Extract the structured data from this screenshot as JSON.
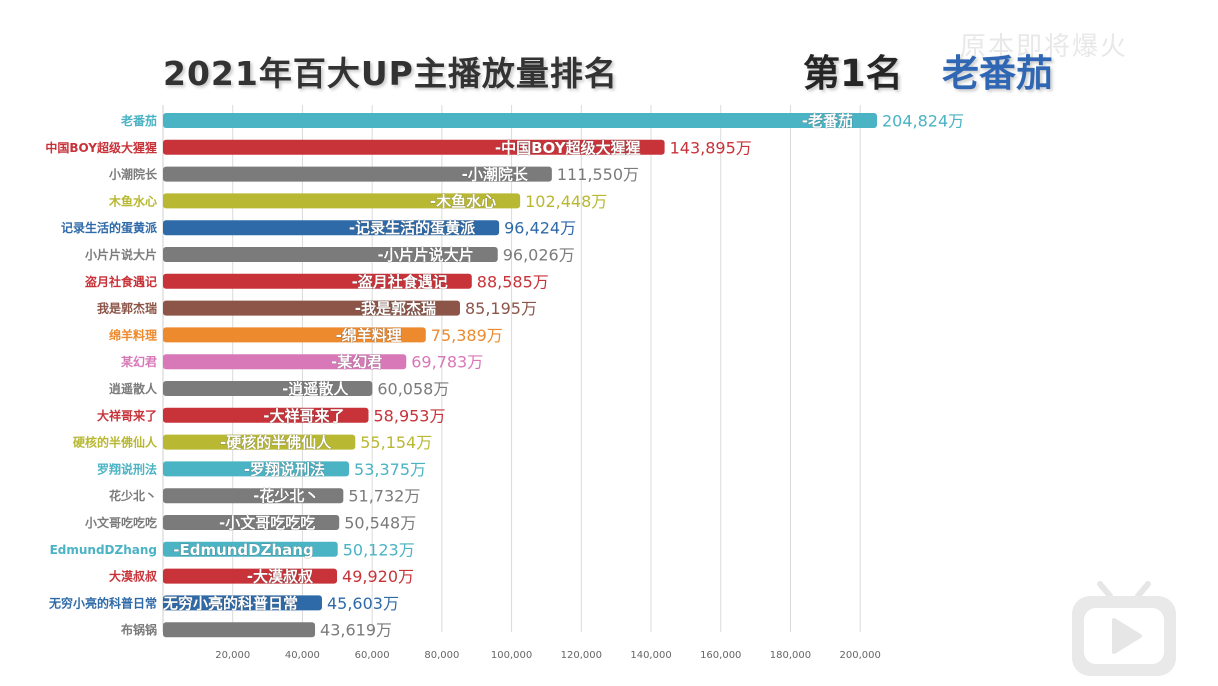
{
  "title": "2021年百大UP主播放量排名",
  "rank_label": "第1名",
  "leader": "老番茄",
  "watermark": "原本即将爆火",
  "chart_data": {
    "type": "bar",
    "orientation": "horizontal",
    "title": "2021年百大UP主播放量排名",
    "unit": "万",
    "xlim": [
      0,
      204824
    ],
    "xticks": [
      20000,
      40000,
      60000,
      80000,
      100000,
      120000,
      140000,
      160000,
      180000,
      200000
    ],
    "xtick_labels": [
      "20,000",
      "40,000",
      "60,000",
      "80,000",
      "100,000",
      "120,000",
      "140,000",
      "160,000",
      "180,000",
      "200,000"
    ],
    "grid": true,
    "categories": [
      "老番茄",
      "中国BOY超级大猩猩",
      "小潮院长",
      "木鱼水心",
      "记录生活的蛋黄派",
      "小片片说大片",
      "盗月社食遇记",
      "我是郭杰瑞",
      "绵羊料理",
      "某幻君",
      "逍遥散人",
      "大祥哥来了",
      "硬核的半佛仙人",
      "罗翔说刑法",
      "花少北丶",
      "小文哥吃吃吃",
      "EdmundDZhang",
      "大漠叔叔",
      "无穷小亮的科普日常",
      "布锅锅"
    ],
    "bar_labels": [
      "-老番茄",
      "-中国BOY超级大猩猩",
      "-小潮院长",
      "-木鱼水心",
      "-记录生活的蛋黄派",
      "-小片片说大片",
      "-盗月社食遇记",
      "-我是郭杰瑞",
      "-绵羊料理",
      "-某幻君",
      "-逍遥散人",
      "-大祥哥来了",
      "-硬核的半佛仙人",
      "-罗翔说刑法",
      "-花少北丶",
      "-小文哥吃吃吃",
      "-EdmundDZhang",
      "-大漠叔叔",
      "无穷小亮的科普日常",
      ""
    ],
    "values": [
      204824,
      143895,
      111550,
      102448,
      96424,
      96026,
      88585,
      85195,
      75389,
      69783,
      60058,
      58953,
      55154,
      53375,
      51732,
      50548,
      50123,
      49920,
      45603,
      43619
    ],
    "value_labels": [
      "204,824万",
      "143,895万",
      "111,550万",
      "102,448万",
      "96,424万",
      "96,026万",
      "88,585万",
      "85,195万",
      "75,389万",
      "69,783万",
      "60,058万",
      "58,953万",
      "55,154万",
      "53,375万",
      "51,732万",
      "50,548万",
      "50,123万",
      "49,920万",
      "45,603万",
      "43,619万"
    ],
    "colors": [
      "#4ab3c4",
      "#c8333a",
      "#7b7b7b",
      "#b9b833",
      "#2f6aa8",
      "#7b7b7b",
      "#c8333a",
      "#8c5548",
      "#ed8a2d",
      "#d878b8",
      "#7b7b7b",
      "#c8333a",
      "#b9b833",
      "#4ab3c4",
      "#7b7b7b",
      "#7b7b7b",
      "#4ab3c4",
      "#c8333a",
      "#2f6aa8",
      "#7b7b7b"
    ]
  }
}
